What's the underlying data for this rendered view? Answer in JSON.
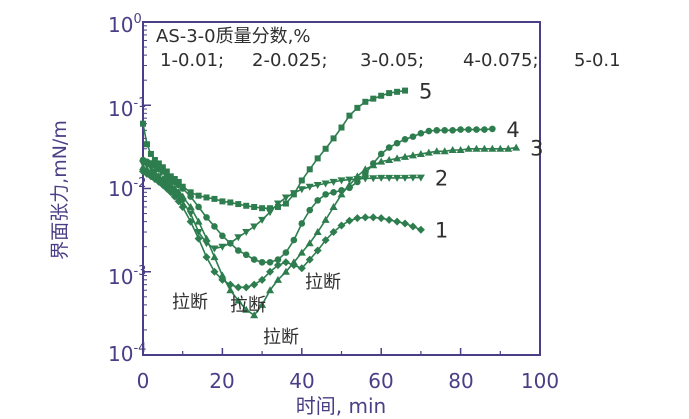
{
  "chart_data": {
    "type": "line",
    "title": "",
    "xlabel": "时间, min",
    "ylabel": "界面张力,mN/m",
    "x_range": [
      0,
      100
    ],
    "x_ticks": [
      "0",
      "20",
      "40",
      "60",
      "80",
      "100"
    ],
    "y_scale": "log",
    "y_range": [
      0.0001,
      1
    ],
    "y_tick_values": [
      0.0001,
      0.001,
      0.01,
      0.1,
      1
    ],
    "y_tick_labels": [
      {
        "base": "10",
        "exp": "-4"
      },
      {
        "base": "10",
        "exp": "-3"
      },
      {
        "base": "10",
        "exp": "-2"
      },
      {
        "base": "10",
        "exp": "-1"
      },
      {
        "base": "10",
        "exp": "0"
      }
    ],
    "grid": false,
    "legend_title": "AS-3-0质量分数,%",
    "legend_entries": [
      "1-0.01;",
      "2-0.025;",
      "3-0.05;",
      "4-0.075;",
      "5-0.1"
    ],
    "break_annotation": "拉断",
    "colors": {
      "axis": "#4a3f86",
      "series": "#2e7d4f",
      "text": "#2f2f2f"
    },
    "series": [
      {
        "name": "1",
        "marker": "diamond",
        "x": [
          0,
          1,
          2,
          3,
          4,
          5,
          6,
          7,
          8,
          9,
          10,
          12,
          14,
          16,
          18,
          20,
          22,
          24,
          26,
          28,
          30,
          32,
          34,
          36,
          38,
          40,
          42,
          44,
          46,
          48,
          50,
          52,
          54,
          56,
          58,
          60,
          62,
          64,
          66,
          68,
          70
        ],
        "y": [
          0.016,
          0.015,
          0.014,
          0.013,
          0.012,
          0.011,
          0.01,
          0.009,
          0.008,
          0.007,
          0.006,
          0.004,
          0.0025,
          0.0015,
          0.001,
          0.0008,
          0.0007,
          0.00065,
          0.00065,
          0.0007,
          0.0008,
          0.001,
          0.0012,
          0.0013,
          0.0012,
          0.0011,
          0.0014,
          0.0018,
          0.0024,
          0.003,
          0.0036,
          0.0041,
          0.0044,
          0.0045,
          0.0045,
          0.0044,
          0.0042,
          0.004,
          0.0038,
          0.0035,
          0.0032
        ]
      },
      {
        "name": "2",
        "marker": "triangle-down",
        "x": [
          0,
          1,
          2,
          3,
          4,
          5,
          6,
          7,
          8,
          9,
          10,
          12,
          14,
          16,
          18,
          20,
          22,
          24,
          26,
          28,
          30,
          32,
          34,
          36,
          38,
          40,
          42,
          44,
          46,
          48,
          50,
          52,
          54,
          56,
          58,
          60,
          62,
          64,
          66,
          68,
          70
        ],
        "y": [
          0.02,
          0.019,
          0.018,
          0.016,
          0.014,
          0.012,
          0.011,
          0.01,
          0.009,
          0.008,
          0.007,
          0.005,
          0.003,
          0.0022,
          0.0019,
          0.002,
          0.0022,
          0.0026,
          0.003,
          0.0035,
          0.0042,
          0.0052,
          0.0066,
          0.0078,
          0.0088,
          0.0098,
          0.0105,
          0.011,
          0.0115,
          0.012,
          0.0125,
          0.0128,
          0.013,
          0.0132,
          0.0133,
          0.0134,
          0.0134,
          0.0134,
          0.0134,
          0.0135,
          0.0135
        ]
      },
      {
        "name": "3",
        "marker": "triangle-up",
        "x": [
          0,
          1,
          2,
          3,
          4,
          5,
          6,
          7,
          8,
          9,
          10,
          12,
          14,
          16,
          18,
          20,
          22,
          24,
          26,
          28,
          30,
          32,
          34,
          36,
          38,
          40,
          42,
          44,
          46,
          48,
          50,
          52,
          54,
          56,
          58,
          60,
          62,
          64,
          66,
          68,
          70,
          72,
          74,
          76,
          78,
          80,
          82,
          84,
          86,
          88,
          90,
          92,
          94
        ],
        "y": [
          0.018,
          0.017,
          0.016,
          0.015,
          0.014,
          0.013,
          0.012,
          0.011,
          0.01,
          0.009,
          0.008,
          0.006,
          0.004,
          0.0025,
          0.0015,
          0.0009,
          0.0006,
          0.00045,
          0.00035,
          0.0003,
          0.0004,
          0.0006,
          0.0008,
          0.001,
          0.0013,
          0.0017,
          0.0022,
          0.003,
          0.0042,
          0.006,
          0.0085,
          0.011,
          0.014,
          0.017,
          0.019,
          0.021,
          0.022,
          0.023,
          0.024,
          0.025,
          0.026,
          0.027,
          0.028,
          0.028,
          0.029,
          0.029,
          0.03,
          0.03,
          0.03,
          0.03,
          0.03,
          0.03,
          0.031
        ]
      },
      {
        "name": "4",
        "marker": "circle",
        "x": [
          0,
          1,
          2,
          3,
          4,
          5,
          6,
          7,
          8,
          9,
          10,
          12,
          14,
          16,
          18,
          20,
          22,
          24,
          26,
          28,
          30,
          32,
          34,
          36,
          38,
          40,
          42,
          44,
          46,
          48,
          50,
          52,
          54,
          56,
          58,
          60,
          62,
          64,
          66,
          68,
          70,
          72,
          74,
          76,
          78,
          80,
          82,
          84,
          86,
          88
        ],
        "y": [
          0.022,
          0.021,
          0.02,
          0.019,
          0.017,
          0.016,
          0.014,
          0.013,
          0.012,
          0.011,
          0.01,
          0.008,
          0.006,
          0.0045,
          0.0035,
          0.0027,
          0.0022,
          0.0018,
          0.0016,
          0.0014,
          0.0013,
          0.0013,
          0.0014,
          0.0017,
          0.0024,
          0.0038,
          0.0055,
          0.0072,
          0.0085,
          0.009,
          0.0095,
          0.0102,
          0.012,
          0.015,
          0.02,
          0.026,
          0.031,
          0.035,
          0.039,
          0.042,
          0.046,
          0.049,
          0.05,
          0.05,
          0.05,
          0.051,
          0.051,
          0.051,
          0.051,
          0.052
        ]
      },
      {
        "name": "5",
        "marker": "square",
        "x": [
          0,
          1,
          2,
          3,
          4,
          5,
          6,
          7,
          8,
          9,
          10,
          12,
          14,
          16,
          18,
          20,
          22,
          24,
          26,
          28,
          30,
          32,
          34,
          36,
          38,
          40,
          42,
          44,
          46,
          48,
          50,
          52,
          54,
          56,
          58,
          60,
          62,
          64,
          66
        ],
        "y": [
          0.06,
          0.034,
          0.026,
          0.022,
          0.02,
          0.018,
          0.016,
          0.014,
          0.013,
          0.012,
          0.0105,
          0.009,
          0.0082,
          0.0078,
          0.0075,
          0.007,
          0.0068,
          0.0065,
          0.0062,
          0.006,
          0.0058,
          0.0058,
          0.006,
          0.0066,
          0.0085,
          0.0125,
          0.017,
          0.023,
          0.03,
          0.04,
          0.054,
          0.075,
          0.093,
          0.11,
          0.12,
          0.13,
          0.14,
          0.145,
          0.15
        ]
      }
    ]
  }
}
